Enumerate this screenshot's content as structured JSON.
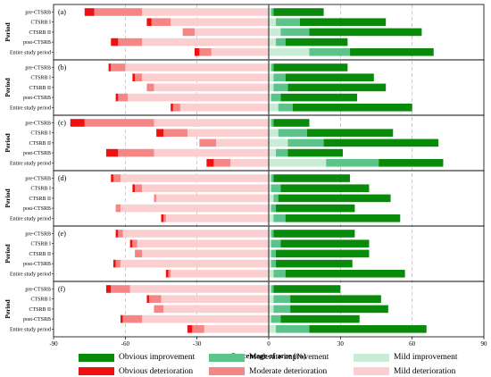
{
  "chart_data": {
    "type": "bar",
    "orientation": "horizontal-diverging",
    "xlabel": "Percentage of arae (%)",
    "ylabel": "Period",
    "xlim": [
      -90,
      90
    ],
    "xticks": [
      -90,
      -60,
      -30,
      0,
      30,
      60,
      90
    ],
    "grid": "vertical dashed",
    "legend_position": "bottom",
    "categories": [
      "pre-CTSRB",
      "CTSRB I",
      "CTSRB II",
      "post-CTSRB",
      "Entire study period"
    ],
    "legend": [
      {
        "key": "obv_imp",
        "label": "Obvious improvement",
        "color": "#0a8a0a"
      },
      {
        "key": "mod_imp",
        "label": "Moderate improvement",
        "color": "#5cc48a"
      },
      {
        "key": "mild_imp",
        "label": "Mild improvement",
        "color": "#c8ecd6"
      },
      {
        "key": "obv_det",
        "label": "Obvious deterioration",
        "color": "#ee1111"
      },
      {
        "key": "mod_det",
        "label": "Moderate deterioration",
        "color": "#f58686"
      },
      {
        "key": "mild_det",
        "label": "Mild deterioration",
        "color": "#fbcfcf"
      }
    ],
    "panels": [
      {
        "label": "(a)",
        "rows": [
          {
            "mild_imp": 1,
            "mod_imp": 1,
            "obv_imp": 21,
            "mild_det": 53,
            "mod_det": 20,
            "obv_det": 4
          },
          {
            "mild_imp": 3,
            "mod_imp": 10,
            "obv_imp": 36,
            "mild_det": 41,
            "mod_det": 8,
            "obv_det": 2
          },
          {
            "mild_imp": 5,
            "mod_imp": 12,
            "obv_imp": 47,
            "mild_det": 31,
            "mod_det": 5,
            "obv_det": 0
          },
          {
            "mild_imp": 3,
            "mod_imp": 4,
            "obv_imp": 26,
            "mild_det": 53,
            "mod_det": 10,
            "obv_det": 3
          },
          {
            "mild_imp": 17,
            "mod_imp": 17,
            "obv_imp": 35,
            "mild_det": 24,
            "mod_det": 5,
            "obv_det": 2
          }
        ]
      },
      {
        "label": "(b)",
        "rows": [
          {
            "mild_imp": 1,
            "mod_imp": 1,
            "obv_imp": 31,
            "mild_det": 60,
            "mod_det": 6,
            "obv_det": 1
          },
          {
            "mild_imp": 2,
            "mod_imp": 5,
            "obv_imp": 37,
            "mild_det": 53,
            "mod_det": 3,
            "obv_det": 1
          },
          {
            "mild_imp": 2,
            "mod_imp": 6,
            "obv_imp": 41,
            "mild_det": 48,
            "mod_det": 3,
            "obv_det": 0
          },
          {
            "mild_imp": 1,
            "mod_imp": 4,
            "obv_imp": 32,
            "mild_det": 59,
            "mod_det": 4,
            "obv_det": 1
          },
          {
            "mild_imp": 4,
            "mod_imp": 6,
            "obv_imp": 50,
            "mild_det": 37,
            "mod_det": 3,
            "obv_det": 1
          }
        ]
      },
      {
        "label": "(c)",
        "rows": [
          {
            "mild_imp": 1,
            "mod_imp": 1,
            "obv_imp": 15,
            "mild_det": 48,
            "mod_det": 29,
            "obv_det": 6
          },
          {
            "mild_imp": 4,
            "mod_imp": 12,
            "obv_imp": 36,
            "mild_det": 34,
            "mod_det": 10,
            "obv_det": 3
          },
          {
            "mild_imp": 8,
            "mod_imp": 15,
            "obv_imp": 48,
            "mild_det": 22,
            "mod_det": 7,
            "obv_det": 0
          },
          {
            "mild_imp": 3,
            "mod_imp": 5,
            "obv_imp": 23,
            "mild_det": 48,
            "mod_det": 15,
            "obv_det": 5
          },
          {
            "mild_imp": 24,
            "mod_imp": 22,
            "obv_imp": 27,
            "mild_det": 16,
            "mod_det": 7,
            "obv_det": 3
          }
        ]
      },
      {
        "label": "(d)",
        "rows": [
          {
            "mild_imp": 1,
            "mod_imp": 1,
            "obv_imp": 32,
            "mild_det": 62,
            "mod_det": 3,
            "obv_det": 1
          },
          {
            "mild_imp": 1,
            "mod_imp": 4,
            "obv_imp": 37,
            "mild_det": 53,
            "mod_det": 3,
            "obv_det": 1
          },
          {
            "mild_imp": 2,
            "mod_imp": 2,
            "obv_imp": 47,
            "mild_det": 47,
            "mod_det": 1,
            "obv_det": 0
          },
          {
            "mild_imp": 1,
            "mod_imp": 2,
            "obv_imp": 33,
            "mild_det": 62,
            "mod_det": 2,
            "obv_det": 0
          },
          {
            "mild_imp": 2,
            "mod_imp": 5,
            "obv_imp": 48,
            "mild_det": 43,
            "mod_det": 1,
            "obv_det": 1
          }
        ]
      },
      {
        "label": "(e)",
        "rows": [
          {
            "mild_imp": 1,
            "mod_imp": 1,
            "obv_imp": 34,
            "mild_det": 61,
            "mod_det": 2,
            "obv_det": 1
          },
          {
            "mild_imp": 1,
            "mod_imp": 4,
            "obv_imp": 37,
            "mild_det": 55,
            "mod_det": 2,
            "obv_det": 1
          },
          {
            "mild_imp": 1,
            "mod_imp": 2,
            "obv_imp": 39,
            "mild_det": 53,
            "mod_det": 3,
            "obv_det": 0
          },
          {
            "mild_imp": 1,
            "mod_imp": 2,
            "obv_imp": 32,
            "mild_det": 62,
            "mod_det": 2,
            "obv_det": 1
          },
          {
            "mild_imp": 2,
            "mod_imp": 5,
            "obv_imp": 50,
            "mild_det": 41,
            "mod_det": 1,
            "obv_det": 1
          }
        ]
      },
      {
        "label": "(f)",
        "rows": [
          {
            "mild_imp": 1,
            "mod_imp": 1,
            "obv_imp": 28,
            "mild_det": 58,
            "mod_det": 8,
            "obv_det": 2
          },
          {
            "mild_imp": 2,
            "mod_imp": 7,
            "obv_imp": 38,
            "mild_det": 45,
            "mod_det": 5,
            "obv_det": 1
          },
          {
            "mild_imp": 2,
            "mod_imp": 7,
            "obv_imp": 41,
            "mild_det": 44,
            "mod_det": 4,
            "obv_det": 0
          },
          {
            "mild_imp": 1,
            "mod_imp": 4,
            "obv_imp": 33,
            "mild_det": 53,
            "mod_det": 8,
            "obv_det": 1
          },
          {
            "mild_imp": 3,
            "mod_imp": 14,
            "obv_imp": 49,
            "mild_det": 27,
            "mod_det": 5,
            "obv_det": 2
          }
        ]
      }
    ]
  }
}
